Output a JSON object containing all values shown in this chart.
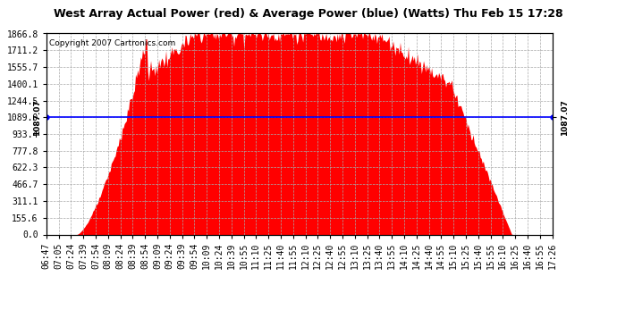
{
  "title": "West Array Actual Power (red) & Average Power (blue) (Watts) Thu Feb 15 17:28",
  "copyright": "Copyright 2007 Cartronics.com",
  "y_ticks": [
    0.0,
    155.6,
    311.1,
    466.7,
    622.3,
    777.8,
    933.4,
    1089.0,
    1244.5,
    1400.1,
    1555.7,
    1711.2,
    1866.8
  ],
  "ymax": 1866.8,
  "ymin": 0.0,
  "average_power": 1087.07,
  "left_label": "1087.07",
  "right_label": "1087.07",
  "fill_color": "#FF0000",
  "line_color": "#0000FF",
  "bg_color": "#FFFFFF",
  "plot_bg_color": "#FFFFFF",
  "grid_color": "#AAAAAA",
  "title_color": "#000000",
  "title_fontsize": 9,
  "copyright_fontsize": 6.5,
  "tick_fontsize": 7,
  "x_tick_labels": [
    "06:47",
    "07:05",
    "07:24",
    "07:39",
    "07:54",
    "08:09",
    "08:24",
    "08:39",
    "08:54",
    "09:09",
    "09:24",
    "09:39",
    "09:54",
    "10:09",
    "10:24",
    "10:39",
    "10:55",
    "11:10",
    "11:25",
    "11:40",
    "11:55",
    "12:10",
    "12:25",
    "12:40",
    "12:55",
    "13:10",
    "13:25",
    "13:40",
    "13:55",
    "14:10",
    "14:25",
    "14:40",
    "14:55",
    "15:10",
    "15:25",
    "15:40",
    "15:55",
    "16:10",
    "16:25",
    "16:40",
    "16:55",
    "17:26"
  ]
}
